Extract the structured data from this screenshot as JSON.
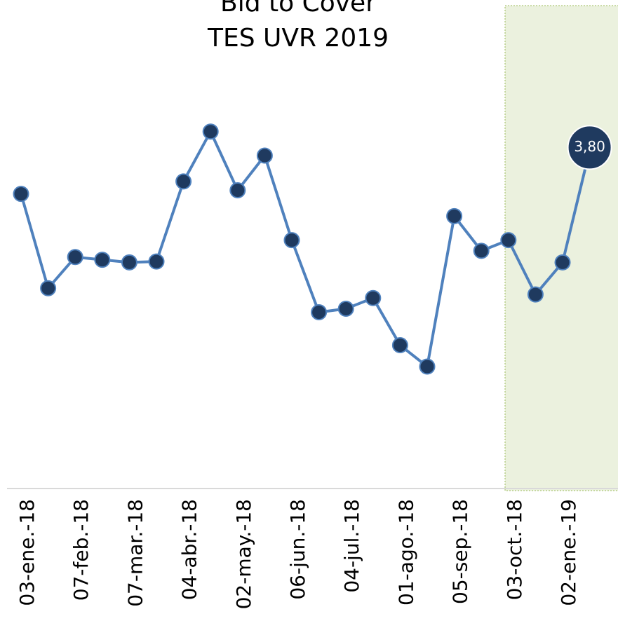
{
  "chart_data": {
    "type": "line",
    "title": "Bid to Cover",
    "subtitle": "TES UVR 2019",
    "categories": [
      "03-ene.-18",
      null,
      "07-feb.-18",
      null,
      "07-mar.-18",
      null,
      "04-abr.-18",
      null,
      "02-may.-18",
      null,
      "06-jun.-18",
      null,
      "04-jul.-18",
      null,
      "01-ago.-18",
      null,
      "05-sep.-18",
      null,
      "03-oct.-18",
      null,
      "02-ene.-19",
      null
    ],
    "series": [
      {
        "name": "Bid to Cover",
        "color": "#4f81bd",
        "values": [
          3.31,
          2.25,
          2.6,
          2.57,
          2.54,
          2.55,
          3.45,
          4.01,
          3.35,
          3.74,
          2.79,
          1.98,
          2.02,
          2.14,
          1.61,
          1.37,
          3.06,
          2.67,
          2.79,
          2.18,
          2.54,
          3.8
        ],
        "value_labels": [
          null,
          null,
          null,
          null,
          null,
          null,
          null,
          null,
          null,
          null,
          null,
          null,
          null,
          null,
          null,
          null,
          null,
          null,
          null,
          null,
          null,
          "3,80"
        ]
      }
    ],
    "marker_color": "#1f3a5f",
    "ylim": [
      0,
      4.5
    ]
  }
}
